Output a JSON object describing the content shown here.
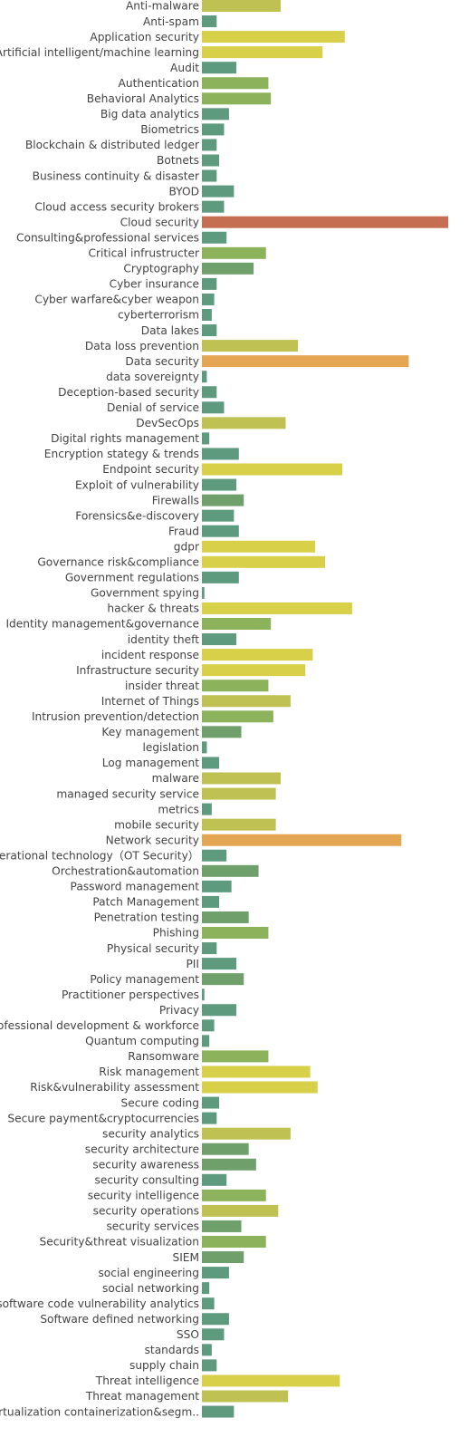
{
  "chart_data": {
    "type": "bar",
    "orientation": "horizontal",
    "title": "",
    "xlabel": "",
    "ylabel": "",
    "grid": false,
    "xlim": [
      0,
      100
    ],
    "categories": [
      "Anti-malware",
      "Anti-spam",
      "Application security",
      "Artificial intelligent/machine learning",
      "Audit",
      "Authentication",
      "Behavioral Analytics",
      "Big data analytics",
      "Biometrics",
      "Blockchain & distributed ledger",
      "Botnets",
      "Business continuity & disaster",
      "BYOD",
      "Cloud access security brokers",
      "Cloud security",
      "Consulting&professional services",
      "Critical infrustructer",
      "Cryptography",
      "Cyber insurance",
      "Cyber warfare&cyber weapon",
      "cyberterrorism",
      "Data lakes",
      "Data loss prevention",
      "Data security",
      "data sovereignty",
      "Deception-based security",
      "Denial of service",
      "DevSecOps",
      "Digital rights management",
      "Encryption stategy & trends",
      "Endpoint security",
      "Exploit of vulnerability",
      "Firewalls",
      "Forensics&e-discovery",
      "Fraud",
      "gdpr",
      "Governance risk&compliance",
      "Government regulations",
      "Government spying",
      "hacker & threats",
      "Identity management&governance",
      "identity theft",
      "incident response",
      "Infrastructure security",
      "insider threat",
      "Internet of Things",
      "Intrusion prevention/detection",
      "Key management",
      "legislation",
      "Log management",
      "malware",
      "managed security service",
      "metrics",
      "mobile security",
      "Network security",
      "operational technology（OT Security）",
      "Orchestration&automation",
      "Password management",
      "Patch Management",
      "Penetration testing",
      "Phishing",
      "Physical security",
      "PII",
      "Policy management",
      "Practitioner perspectives",
      "Privacy",
      "Professional development & workforce",
      "Quantum computing",
      "Ransomware",
      "Risk management",
      "Risk&vulnerability assessment",
      "Secure coding",
      "Secure payment&cryptocurrencies",
      "security analytics",
      "security architecture",
      "security awareness",
      "security consulting",
      "security intelligence",
      "security operations",
      "security services",
      "Security&threat visualization",
      "SIEM",
      "social engineering",
      "social networking",
      "software code vulnerability analytics",
      "Software defined networking",
      "SSO",
      "standards",
      "supply chain",
      "Threat intelligence",
      "Threat management",
      "Virtualization containerization&segm.."
    ],
    "values": [
      32,
      6,
      58,
      49,
      14,
      27,
      28,
      11,
      9,
      6,
      7,
      6,
      13,
      9,
      100,
      10,
      26,
      21,
      6,
      5,
      4,
      6,
      39,
      84,
      2,
      6,
      9,
      34,
      3,
      15,
      57,
      14,
      17,
      13,
      15,
      46,
      50,
      15,
      1,
      61,
      28,
      14,
      45,
      42,
      27,
      36,
      29,
      16,
      2,
      7,
      32,
      30,
      4,
      30,
      81,
      10,
      23,
      12,
      7,
      19,
      27,
      6,
      14,
      17,
      1,
      14,
      5,
      3,
      27,
      44,
      47,
      7,
      6,
      36,
      19,
      22,
      10,
      26,
      31,
      16,
      26,
      17,
      11,
      3,
      5,
      11,
      9,
      4,
      6,
      56,
      35,
      13
    ],
    "color_scale": {
      "low": "#5e9a7e",
      "mid1": "#8cb25b",
      "mid2": "#d9d049",
      "high1": "#e4a653",
      "high2": "#c66e52"
    }
  }
}
